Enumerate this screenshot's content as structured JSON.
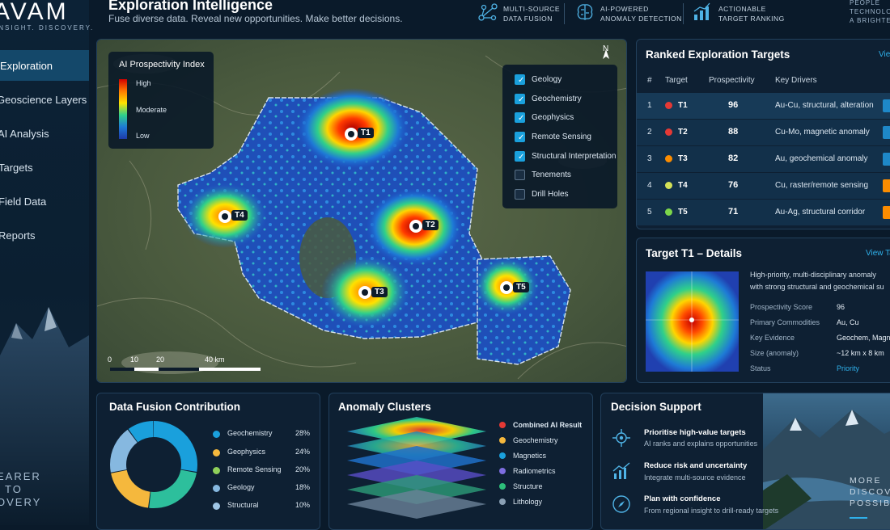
{
  "brand": {
    "logo": "AVAM",
    "tagline": "INSIGHT. DISCOVERY."
  },
  "sidebar": {
    "items": [
      {
        "label": "Exploration",
        "active": true
      },
      {
        "label": "Geoscience Layers"
      },
      {
        "label": "AI Analysis"
      },
      {
        "label": "Targets"
      },
      {
        "label": "Field Data"
      },
      {
        "label": "Reports"
      }
    ],
    "slogan": [
      "EARER",
      "TO",
      "OVERY"
    ]
  },
  "header": {
    "title": "Exploration Intelligence",
    "subtitle": "Fuse diverse data. Reveal new opportunities. Make better decisions.",
    "features": [
      {
        "line1": "MULTI-SOURCE",
        "line2": "DATA FUSION",
        "icon": "network-icon"
      },
      {
        "line1": "AI-POWERED",
        "line2": "ANOMALY DETECTION",
        "icon": "brain-icon"
      },
      {
        "line1": "ACTIONABLE",
        "line2": "TARGET RANKING",
        "icon": "ranking-chart-icon"
      }
    ],
    "corner": [
      "PEOPLE",
      "TECHNOLOG",
      "A BRIGHTER"
    ]
  },
  "map": {
    "legend": {
      "title": "AI Prospectivity Index",
      "high": "High",
      "moderate": "Moderate",
      "low": "Low"
    },
    "north": "N",
    "scale": {
      "t0": "0",
      "t1": "10",
      "t2": "20",
      "t3": "40 km"
    },
    "layers": [
      {
        "label": "Geology",
        "checked": true
      },
      {
        "label": "Geochemistry",
        "checked": true
      },
      {
        "label": "Geophysics",
        "checked": true
      },
      {
        "label": "Remote Sensing",
        "checked": true
      },
      {
        "label": "Structural Interpretation",
        "checked": true
      },
      {
        "label": "Tenements",
        "checked": false
      },
      {
        "label": "Drill Holes",
        "checked": false
      }
    ],
    "pins": {
      "t1": "T1",
      "t2": "T2",
      "t3": "T3",
      "t4": "T4",
      "t5": "T5"
    }
  },
  "ranked": {
    "title": "Ranked Exploration Targets",
    "view": "View",
    "headers": {
      "num": "#",
      "target": "Target",
      "prosp": "Prospectivity",
      "drivers": "Key Drivers"
    },
    "rows": [
      {
        "n": "1",
        "target": "T1",
        "score": "96",
        "drivers": "Au-Cu, structural, alteration",
        "dot": "#e53935",
        "bar": "#1e88c8"
      },
      {
        "n": "2",
        "target": "T2",
        "score": "88",
        "drivers": "Cu-Mo, magnetic anomaly",
        "dot": "#e53935",
        "bar": "#1e88c8"
      },
      {
        "n": "3",
        "target": "T3",
        "score": "82",
        "drivers": "Au, geochemical anomaly",
        "dot": "#fb8c00",
        "bar": "#1e88c8"
      },
      {
        "n": "4",
        "target": "T4",
        "score": "76",
        "drivers": "Cu, raster/remote sensing",
        "dot": "#d4e157",
        "bar": "#fb8c00"
      },
      {
        "n": "5",
        "target": "T5",
        "score": "71",
        "drivers": "Au-Ag, structural corridor",
        "dot": "#7cd64a",
        "bar": "#fb8c00"
      }
    ]
  },
  "details": {
    "title": "Target T1 – Details",
    "view": "View Ta",
    "desc1": "High-priority, multi-disciplinary anomaly",
    "desc2": "with strong structural and geochemical su",
    "fields": [
      {
        "label": "Prospectivity Score",
        "value": "96"
      },
      {
        "label": "Primary Commodities",
        "value": "Au, Cu"
      },
      {
        "label": "Key Evidence",
        "value": "Geochem, Magnetic"
      },
      {
        "label": "Size (anomaly)",
        "value": "~12 km x 8 km"
      },
      {
        "label": "Status",
        "value": "Priority"
      }
    ]
  },
  "fusion": {
    "title": "Data Fusion Contribution",
    "chart_data": {
      "type": "pie",
      "labels": [
        "Geochemistry",
        "Geophysics",
        "Remote Sensing",
        "Geology",
        "Structural"
      ],
      "values": [
        28,
        24,
        20,
        18,
        10
      ],
      "display": [
        "28%",
        "24%",
        "20%",
        "18%",
        "10%"
      ],
      "colors": [
        "#1aa0dc",
        "#f5b83d",
        "#8fd05a",
        "#86b8e0",
        "#9fc6e6"
      ],
      "donut_order": [
        "#1aa0dc",
        "#2dbf9c",
        "#f5b83d",
        "#86b8e0"
      ]
    }
  },
  "anomaly": {
    "title": "Anomaly Clusters",
    "legend": [
      {
        "label": "Combined AI Result",
        "color": "#e53935"
      },
      {
        "label": "Geochemistry",
        "color": "#f5b83d"
      },
      {
        "label": "Magnetics",
        "color": "#1aa0dc"
      },
      {
        "label": "Radiometrics",
        "color": "#7e6ee0"
      },
      {
        "label": "Structure",
        "color": "#2dbf7a"
      },
      {
        "label": "Lithology",
        "color": "#8aa0b4"
      }
    ]
  },
  "decision": {
    "title": "Decision Support",
    "items": [
      {
        "title": "Prioritise high-value targets",
        "sub": "AI ranks and explains opportunities",
        "icon": "target-icon"
      },
      {
        "title": "Reduce risk and uncertainty",
        "sub": "Integrate multi-source evidence",
        "icon": "trend-chart-icon"
      },
      {
        "title": "Plan with confidence",
        "sub": "From regional insight to drill-ready targets",
        "icon": "compass-icon"
      }
    ],
    "more": [
      "MORE",
      "DISCOVE",
      "POSSIBI"
    ]
  }
}
